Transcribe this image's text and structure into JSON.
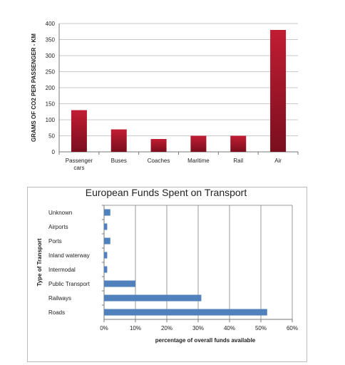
{
  "chart_data": [
    {
      "type": "bar",
      "title": "",
      "xlabel": "",
      "ylabel": "GRAMS OF CO2 PER PASSENGER - KM",
      "categories": [
        [
          "Passenger",
          "cars"
        ],
        [
          "Buses"
        ],
        [
          "Coaches"
        ],
        [
          "Maritime"
        ],
        [
          "Rail"
        ],
        [
          "Air"
        ]
      ],
      "values": [
        130,
        70,
        40,
        50,
        50,
        380
      ],
      "ylim": [
        0,
        400
      ],
      "yticks": [
        "0",
        "50",
        "100",
        "150",
        "200",
        "250",
        "300",
        "350",
        "400"
      ],
      "grid": true,
      "bar_color": "#a3142a"
    },
    {
      "type": "bar",
      "orientation": "horizontal",
      "title": "European Funds Spent on Transport",
      "xlabel": "percentage of overall funds available",
      "ylabel": "Type of Transport",
      "categories": [
        "Unknown",
        "Airports",
        "Ports",
        "Inland waterway",
        "Intermodal",
        "Public Transport",
        "Railways",
        "Roads"
      ],
      "values": [
        2,
        1,
        2,
        1,
        1,
        10,
        31,
        52
      ],
      "xlim": [
        0,
        60
      ],
      "xticks": [
        "0%",
        "10%",
        "20%",
        "30%",
        "40%",
        "50%",
        "60%"
      ],
      "grid": true,
      "bar_color": "#4f81bd"
    }
  ]
}
